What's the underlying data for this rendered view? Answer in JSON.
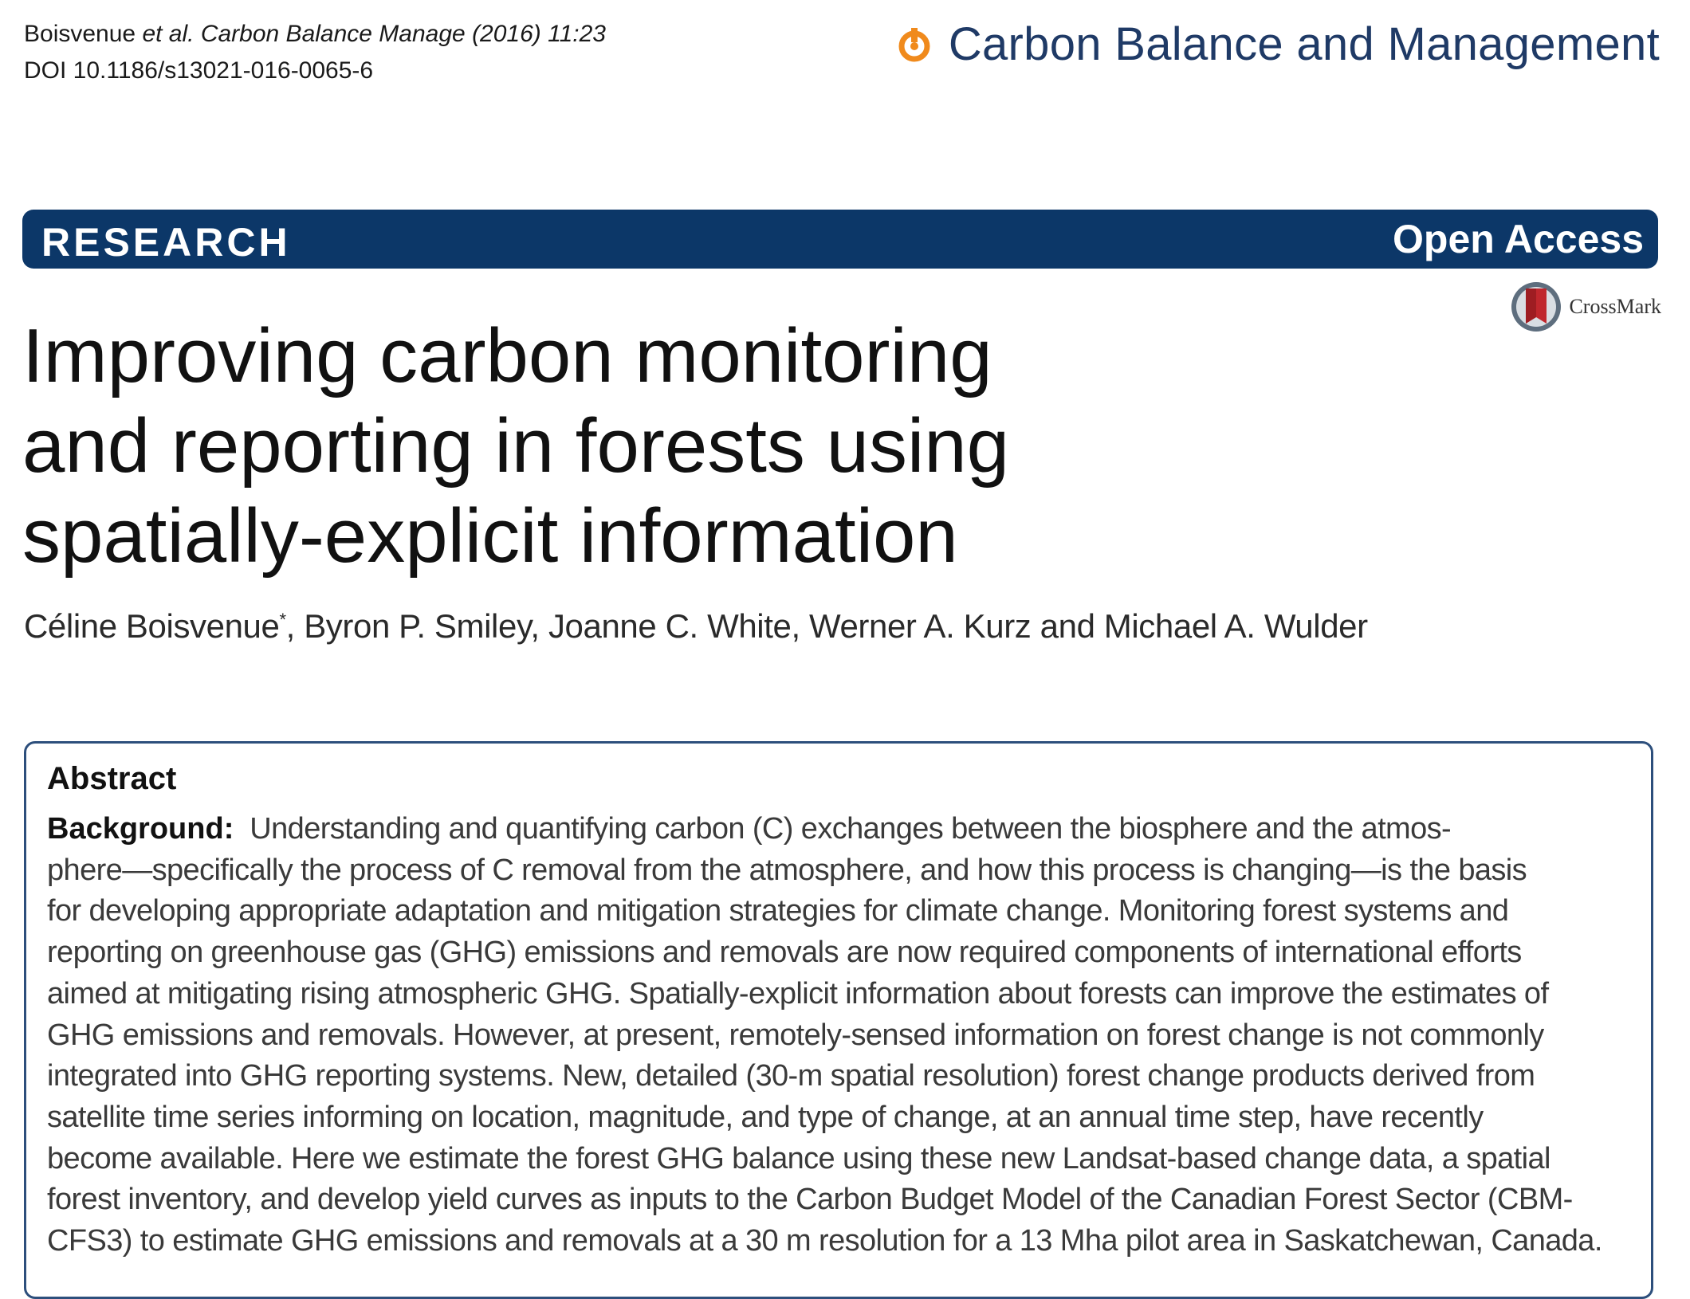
{
  "header": {
    "citation_authors": "Boisvenue",
    "citation_journal_italic": "et al. Carbon Balance Manage",
    "citation_year_volume": "(2016) 11:23",
    "doi": "DOI 10.1186/s13021-016-0065-6",
    "journal_name": "Carbon Balance and Management"
  },
  "banner": {
    "section": "RESEARCH",
    "access": "Open Access"
  },
  "crossmark": {
    "label": "CrossMark"
  },
  "article": {
    "title_lines": [
      "Improving carbon monitoring",
      "and reporting in forests using",
      "spatially-explicit information"
    ],
    "authors_first": "Céline Boisvenue",
    "authors_marker": "*",
    "authors_rest": ", Byron P. Smiley, Joanne C. White, Werner A. Kurz and Michael A. Wulder"
  },
  "abstract": {
    "heading": "Abstract",
    "background_label": "Background:",
    "lines": [
      "Understanding and quantifying carbon (C) exchanges between the biosphere and the atmos-",
      "phere—specifically the process of C removal from the atmosphere, and how this process is changing—is the basis",
      "for developing appropriate adaptation and mitigation strategies for climate change. Monitoring forest systems and",
      "reporting on greenhouse gas (GHG) emissions and removals are now required components of international efforts",
      "aimed at mitigating rising atmospheric GHG. Spatially-explicit information about forests can improve the estimates of",
      "GHG emissions and removals. However, at present, remotely-sensed information on forest change is not commonly",
      "integrated into GHG reporting systems. New, detailed (30-m spatial resolution) forest change products derived from",
      "satellite time series informing on location, magnitude, and type of change, at an annual time step, have recently",
      "become available. Here we estimate the forest GHG balance using these new Landsat-based change data, a spatial",
      "forest inventory, and develop yield curves as inputs to the Carbon Budget Model of the Canadian Forest Sector (CBM-",
      "CFS3) to estimate GHG emissions and removals at a 30 m resolution for a 13 Mha pilot area in Saskatchewan, Canada."
    ]
  },
  "colors": {
    "banner": "#0c3768",
    "journal_text": "#1f3a66",
    "logo_orange": "#f08a1c",
    "box_border": "#2d4f7c"
  },
  "icons": [
    "journal-logo-icon",
    "crossmark-icon"
  ]
}
